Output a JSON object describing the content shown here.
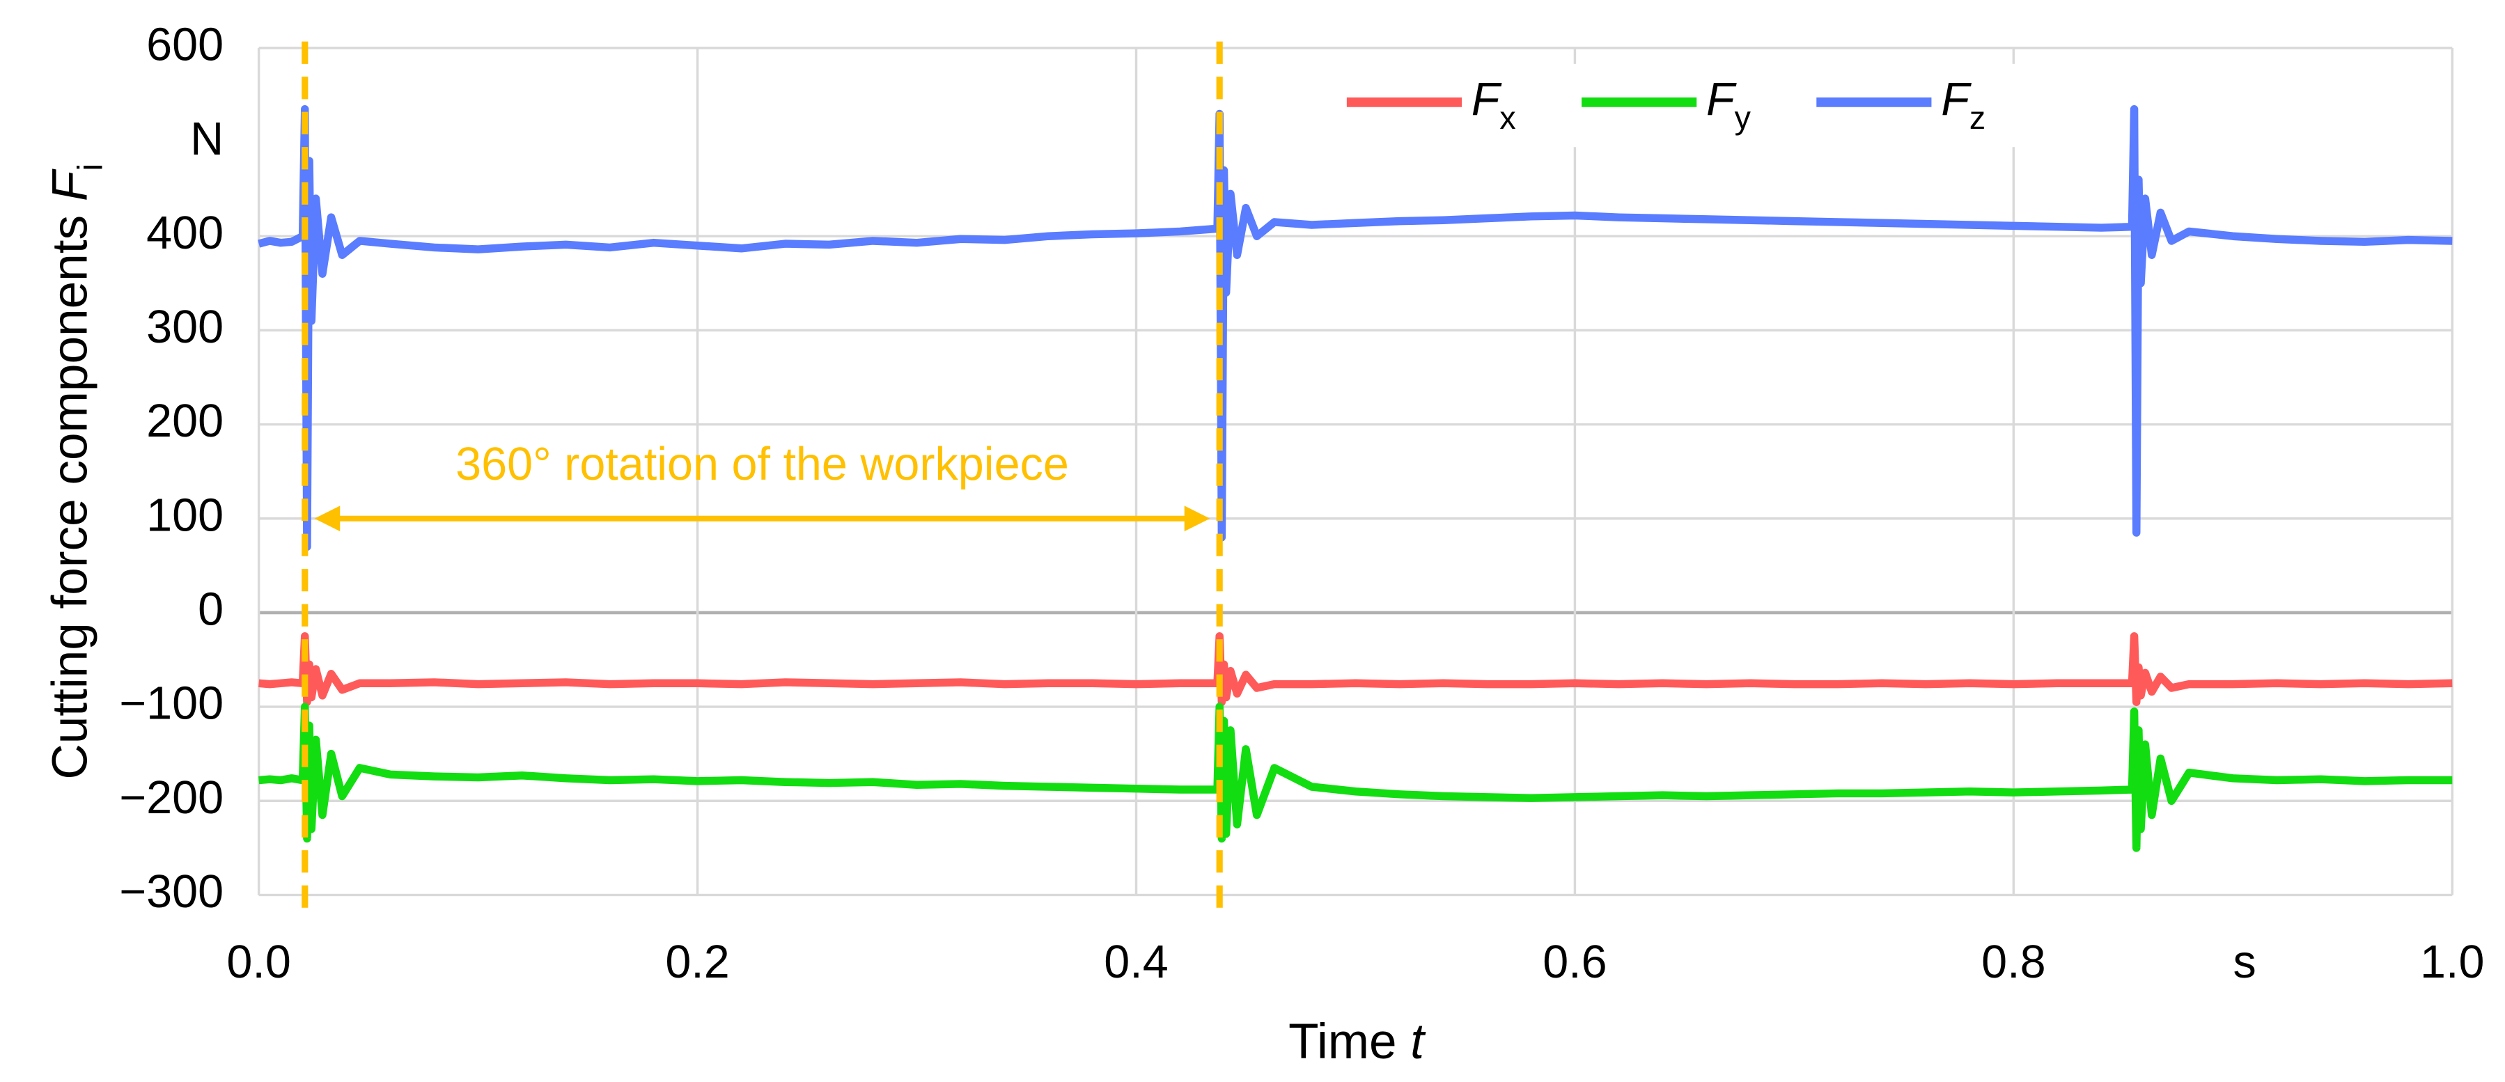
{
  "chart_data": {
    "type": "line",
    "ylabel": "Cutting force components Fi",
    "xlabel": "Time t",
    "x_unit": "s",
    "y_unit": "N",
    "xlim": [
      0,
      1
    ],
    "ylim": [
      -300,
      600
    ],
    "xticks": [
      {
        "value": 0,
        "label": "0.0"
      },
      0.2,
      0.4,
      0.6,
      0.8,
      {
        "value": 1,
        "label": "1.0"
      }
    ],
    "yticks": [
      {
        "value": -300,
        "label": "−300"
      },
      {
        "value": -200,
        "label": "−200"
      },
      {
        "value": -100,
        "label": "−100"
      },
      0,
      100,
      200,
      300,
      400,
      600
    ],
    "grid": true,
    "legend": "top",
    "x": [
      0,
      0.005,
      0.01,
      0.015,
      0.02,
      0.021,
      0.022,
      0.023,
      0.024,
      0.026,
      0.029,
      0.033,
      0.038,
      0.046,
      0.06,
      0.08,
      0.1,
      0.12,
      0.14,
      0.16,
      0.18,
      0.2,
      0.22,
      0.24,
      0.26,
      0.28,
      0.3,
      0.32,
      0.34,
      0.36,
      0.38,
      0.4,
      0.42,
      0.437,
      0.438,
      0.439,
      0.44,
      0.441,
      0.443,
      0.446,
      0.45,
      0.455,
      0.463,
      0.48,
      0.5,
      0.52,
      0.54,
      0.56,
      0.58,
      0.6,
      0.62,
      0.64,
      0.66,
      0.68,
      0.7,
      0.72,
      0.74,
      0.76,
      0.78,
      0.8,
      0.82,
      0.84,
      0.854,
      0.855,
      0.856,
      0.857,
      0.858,
      0.86,
      0.863,
      0.867,
      0.872,
      0.88,
      0.9,
      0.92,
      0.94,
      0.96,
      0.98,
      1.0
    ],
    "series": [
      {
        "name": "Fx",
        "color": "#ff5a5a",
        "values": [
          -75,
          -76,
          -75,
          -74,
          -75,
          -25,
          -95,
          -55,
          -90,
          -60,
          -88,
          -65,
          -82,
          -75,
          -75,
          -74,
          -76,
          -75,
          -74,
          -76,
          -75,
          -75,
          -76,
          -74,
          -75,
          -76,
          -75,
          -74,
          -76,
          -75,
          -75,
          -76,
          -75,
          -75,
          -25,
          -95,
          -55,
          -90,
          -62,
          -86,
          -66,
          -80,
          -76,
          -76,
          -75,
          -76,
          -75,
          -76,
          -76,
          -75,
          -76,
          -75,
          -76,
          -75,
          -76,
          -76,
          -75,
          -76,
          -75,
          -76,
          -75,
          -75,
          -75,
          -25,
          -95,
          -58,
          -88,
          -64,
          -84,
          -68,
          -80,
          -76,
          -76,
          -75,
          -76,
          -75,
          -76,
          -75
        ]
      },
      {
        "name": "Fy",
        "color": "#11dd11",
        "values": [
          -178,
          -177,
          -178,
          -176,
          -178,
          -100,
          -240,
          -120,
          -230,
          -135,
          -215,
          -150,
          -195,
          -165,
          -172,
          -174,
          -175,
          -173,
          -176,
          -178,
          -177,
          -179,
          -178,
          -180,
          -181,
          -180,
          -183,
          -182,
          -184,
          -185,
          -186,
          -187,
          -188,
          -188,
          -100,
          -240,
          -115,
          -235,
          -125,
          -225,
          -145,
          -215,
          -165,
          -185,
          -190,
          -193,
          -195,
          -196,
          -197,
          -196,
          -195,
          -194,
          -195,
          -194,
          -193,
          -192,
          -192,
          -191,
          -190,
          -191,
          -190,
          -189,
          -188,
          -105,
          -250,
          -125,
          -230,
          -140,
          -215,
          -155,
          -200,
          -170,
          -176,
          -178,
          -177,
          -179,
          -178,
          -178
        ]
      },
      {
        "name": "Fz",
        "color": "#5a7cff",
        "values": [
          392,
          395,
          393,
          394,
          400,
          535,
          70,
          480,
          310,
          440,
          360,
          420,
          380,
          395,
          392,
          388,
          386,
          389,
          391,
          388,
          393,
          390,
          387,
          392,
          391,
          395,
          393,
          397,
          396,
          400,
          402,
          403,
          405,
          408,
          530,
          80,
          470,
          340,
          445,
          380,
          430,
          400,
          415,
          412,
          414,
          416,
          417,
          419,
          421,
          422,
          420,
          419,
          418,
          417,
          416,
          415,
          414,
          413,
          412,
          411,
          410,
          409,
          410,
          535,
          85,
          460,
          350,
          440,
          380,
          425,
          395,
          405,
          400,
          397,
          395,
          394,
          396,
          395
        ]
      }
    ],
    "annotation": {
      "text": "360° rotation of the workpiece",
      "x_start": 0.021,
      "x_end": 0.438,
      "y": 100,
      "color": "#ffc000"
    }
  }
}
